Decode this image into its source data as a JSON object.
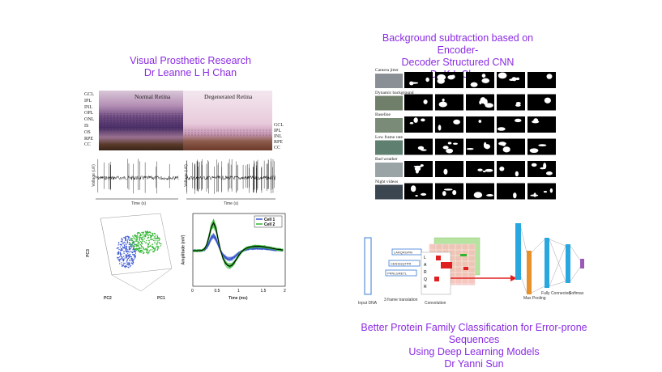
{
  "left": {
    "caption_line1": "Visual Prosthetic Research",
    "caption_line2": "Dr Leanne L H Chan",
    "histology": {
      "normal_title": "Normal Retina",
      "degenerated_title": "Degenerated Retina",
      "left_layers": [
        "GCL",
        "IPL",
        "INL",
        "OPL",
        "ONL",
        "IS",
        "OS",
        "RPE",
        "CC"
      ],
      "right_layers": [
        "GCL",
        "IPL",
        "INL",
        "RPE",
        "CC"
      ]
    },
    "traces": {
      "ylabel": "Voltage (uV)",
      "xlabel": "Time (s)"
    },
    "pca": {
      "zlabel": "PC3",
      "xlabel": "PC1",
      "ylabel": "PC2"
    },
    "waveform": {
      "ylabel": "Amplitude (mV)",
      "xlabel": "Time (ms)",
      "legend": [
        "Cell 1",
        "Cell 2"
      ],
      "xticks": [
        "0",
        "0.5",
        "1",
        "1.5",
        "2"
      ]
    }
  },
  "right_top": {
    "caption_line1": "Background subtraction based on Encoder-",
    "caption_line2": "Decoder Structured CNN",
    "caption_line3": "Dr K L Chan",
    "rows": [
      "Camera jitter",
      "Dynamic background",
      "Baseline",
      "Low frame rate",
      "Bad weather",
      "Night videos"
    ]
  },
  "right_bottom": {
    "caption_line1": "Better Protein Family Classification for Error-prone Sequences",
    "caption_line2": "Using Deep Learning Models",
    "caption_line3": "Dr Yanni Sun",
    "diagram": {
      "input_label": "Input DNA",
      "frame_label": "3 frame translation",
      "conv_label": "Convolution",
      "pool_label": "Max Pooling",
      "fc_label": "Fully Connected",
      "softmax_label": "Softmax",
      "seq1": "LARQRGPM",
      "seq2": "CENSGQTPR",
      "seq3": "PRNLGRETL",
      "letters": [
        "L",
        "A",
        "R",
        "Q",
        "R"
      ]
    }
  },
  "colors": {
    "caption": "#8a2be2",
    "cell1": "#3a55d0",
    "cell2": "#2fb52f",
    "conv_green": "#b7e3a0",
    "conv_pink": "#f4c2b8",
    "conv_red": "#e02020",
    "net_blue": "#29a8e0",
    "net_orange": "#e8902a",
    "net_purple": "#9b59b6"
  }
}
